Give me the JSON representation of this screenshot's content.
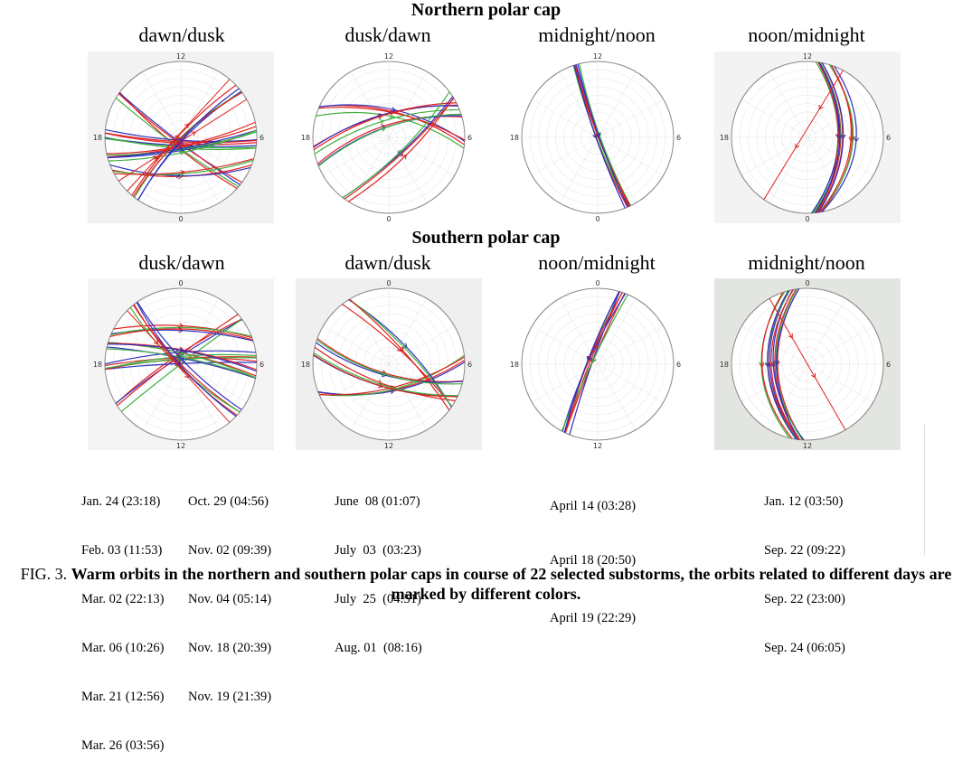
{
  "north": {
    "heading": "Northern polar cap",
    "titles": [
      "dawn/dusk",
      "dusk/dawn",
      "midnight/noon",
      "noon/midnight"
    ]
  },
  "south": {
    "heading": "Southern polar cap",
    "titles": [
      "dusk/dawn",
      "dawn/dusk",
      "noon/midnight",
      "midnight/noon"
    ]
  },
  "axis_labels": {
    "north": {
      "top": "12",
      "right": "6",
      "bottom": "0",
      "left": "18"
    },
    "south": {
      "top": "0",
      "right": "6",
      "bottom": "12",
      "left": "18"
    }
  },
  "colors": {
    "red": "#e02020",
    "blue": "#3030c0",
    "green": "#40b040"
  },
  "dates": {
    "dusk_dawn_col1": [
      "Jan. 24 (23:18)",
      "Feb. 03 (11:53)",
      "Mar. 02 (22:13)",
      "Mar. 06 (10:26)",
      "Mar. 21 (12:56)",
      "Mar. 26 (03:56)"
    ],
    "dusk_dawn_col2": [
      "Oct. 29 (04:56)",
      "Nov. 02 (09:39)",
      "Nov. 04 (05:14)",
      "Nov. 18 (20:39)",
      "Nov. 19 (21:39)"
    ],
    "dawn_dusk": [
      "June  08 (01:07)",
      "July  03  (03:23)",
      "July  25  (04:51)",
      "Aug. 01  (08:16)"
    ],
    "noon_midnight": [
      "April 14 (03:28)",
      "April 18 (20:50)",
      "April 19 (22:29)"
    ],
    "midnight_noon": [
      "Jan. 12 (03:50)",
      "Sep. 22 (09:22)",
      "Sep. 22 (23:00)",
      "Sep. 24 (06:05)"
    ]
  },
  "caption": {
    "label": "FIG. 3.",
    "text": "Warm orbits in the northern and southern polar caps in course of 22 selected substorms, the orbits related to different days are marked by different colors."
  }
}
